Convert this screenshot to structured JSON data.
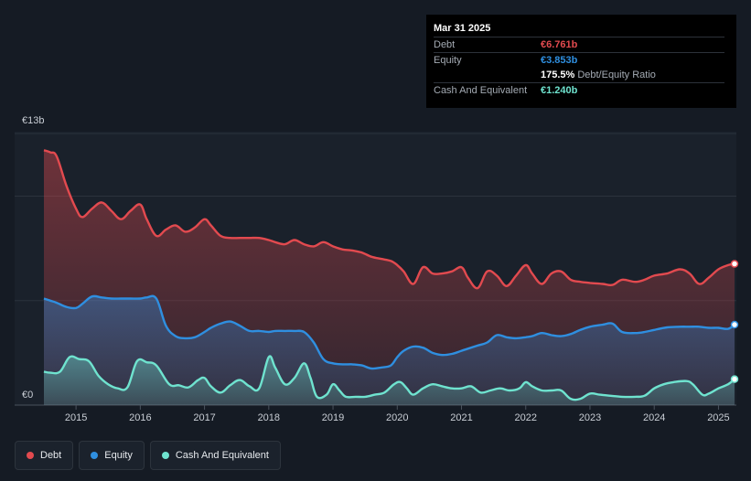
{
  "tooltip": {
    "date": "Mar 31 2025",
    "debt_label": "Debt",
    "debt_value": "€6.761b",
    "equity_label": "Equity",
    "equity_value": "€3.853b",
    "ratio_value": "175.5%",
    "ratio_label": "Debt/Equity Ratio",
    "cash_label": "Cash And Equivalent",
    "cash_value": "€1.240b"
  },
  "legend": {
    "debt": "Debt",
    "equity": "Equity",
    "cash": "Cash And Equivalent"
  },
  "colors": {
    "debt": "#e24a4f",
    "equity": "#2f8fe0",
    "cash": "#6fe3cf"
  },
  "chart_data": {
    "type": "area",
    "title": "",
    "xlabel": "",
    "ylabel": "",
    "y_axis_labels": [
      "€13b",
      "€0"
    ],
    "ylim": [
      0,
      13
    ],
    "xlim": [
      2014.5,
      2025.25
    ],
    "x_ticks": [
      2015,
      2016,
      2017,
      2018,
      2019,
      2020,
      2021,
      2022,
      2023,
      2024,
      2025
    ],
    "x_tick_labels": [
      "2015",
      "2016",
      "2017",
      "2018",
      "2019",
      "2020",
      "2021",
      "2022",
      "2023",
      "2024",
      "2025"
    ],
    "series": [
      {
        "name": "Debt",
        "key": "debt",
        "points": [
          [
            2014.5,
            12.2
          ],
          [
            2014.6,
            12.1
          ],
          [
            2014.7,
            11.9
          ],
          [
            2014.85,
            10.5
          ],
          [
            2015.0,
            9.4
          ],
          [
            2015.1,
            9.0
          ],
          [
            2015.25,
            9.4
          ],
          [
            2015.4,
            9.7
          ],
          [
            2015.55,
            9.3
          ],
          [
            2015.7,
            8.9
          ],
          [
            2015.85,
            9.3
          ],
          [
            2016.0,
            9.6
          ],
          [
            2016.1,
            8.9
          ],
          [
            2016.25,
            8.1
          ],
          [
            2016.4,
            8.4
          ],
          [
            2016.55,
            8.6
          ],
          [
            2016.7,
            8.3
          ],
          [
            2016.85,
            8.5
          ],
          [
            2017.0,
            8.9
          ],
          [
            2017.1,
            8.6
          ],
          [
            2017.25,
            8.1
          ],
          [
            2017.4,
            8.0
          ],
          [
            2017.55,
            8.0
          ],
          [
            2017.7,
            8.0
          ],
          [
            2017.85,
            8.0
          ],
          [
            2018.0,
            7.9
          ],
          [
            2018.1,
            7.8
          ],
          [
            2018.25,
            7.7
          ],
          [
            2018.4,
            7.9
          ],
          [
            2018.55,
            7.7
          ],
          [
            2018.7,
            7.6
          ],
          [
            2018.85,
            7.8
          ],
          [
            2019.0,
            7.6
          ],
          [
            2019.15,
            7.45
          ],
          [
            2019.3,
            7.4
          ],
          [
            2019.45,
            7.3
          ],
          [
            2019.6,
            7.1
          ],
          [
            2019.75,
            7.0
          ],
          [
            2019.9,
            6.9
          ],
          [
            2020.0,
            6.7
          ],
          [
            2020.1,
            6.4
          ],
          [
            2020.25,
            5.8
          ],
          [
            2020.4,
            6.6
          ],
          [
            2020.55,
            6.3
          ],
          [
            2020.7,
            6.3
          ],
          [
            2020.85,
            6.4
          ],
          [
            2021.0,
            6.6
          ],
          [
            2021.1,
            6.1
          ],
          [
            2021.25,
            5.6
          ],
          [
            2021.4,
            6.4
          ],
          [
            2021.55,
            6.2
          ],
          [
            2021.7,
            5.7
          ],
          [
            2021.85,
            6.2
          ],
          [
            2022.0,
            6.7
          ],
          [
            2022.1,
            6.3
          ],
          [
            2022.25,
            5.8
          ],
          [
            2022.4,
            6.3
          ],
          [
            2022.55,
            6.4
          ],
          [
            2022.7,
            6.0
          ],
          [
            2022.85,
            5.9
          ],
          [
            2023.0,
            5.85
          ],
          [
            2023.2,
            5.8
          ],
          [
            2023.35,
            5.75
          ],
          [
            2023.5,
            6.0
          ],
          [
            2023.7,
            5.9
          ],
          [
            2023.85,
            6.0
          ],
          [
            2024.0,
            6.2
          ],
          [
            2024.2,
            6.3
          ],
          [
            2024.4,
            6.5
          ],
          [
            2024.55,
            6.3
          ],
          [
            2024.7,
            5.8
          ],
          [
            2024.85,
            6.1
          ],
          [
            2025.0,
            6.5
          ],
          [
            2025.15,
            6.7
          ],
          [
            2025.25,
            6.76
          ]
        ]
      },
      {
        "name": "Equity",
        "key": "equity",
        "points": [
          [
            2014.5,
            5.1
          ],
          [
            2014.6,
            5.0
          ],
          [
            2014.7,
            4.9
          ],
          [
            2014.85,
            4.7
          ],
          [
            2015.0,
            4.65
          ],
          [
            2015.1,
            4.85
          ],
          [
            2015.25,
            5.2
          ],
          [
            2015.4,
            5.15
          ],
          [
            2015.55,
            5.1
          ],
          [
            2015.7,
            5.1
          ],
          [
            2015.85,
            5.1
          ],
          [
            2016.0,
            5.1
          ],
          [
            2016.1,
            5.15
          ],
          [
            2016.25,
            5.1
          ],
          [
            2016.4,
            3.8
          ],
          [
            2016.55,
            3.3
          ],
          [
            2016.7,
            3.2
          ],
          [
            2016.85,
            3.25
          ],
          [
            2017.0,
            3.5
          ],
          [
            2017.1,
            3.7
          ],
          [
            2017.25,
            3.9
          ],
          [
            2017.4,
            4.0
          ],
          [
            2017.55,
            3.8
          ],
          [
            2017.7,
            3.55
          ],
          [
            2017.85,
            3.55
          ],
          [
            2018.0,
            3.5
          ],
          [
            2018.1,
            3.55
          ],
          [
            2018.25,
            3.55
          ],
          [
            2018.4,
            3.55
          ],
          [
            2018.55,
            3.5
          ],
          [
            2018.7,
            3.0
          ],
          [
            2018.85,
            2.2
          ],
          [
            2019.0,
            2.0
          ],
          [
            2019.15,
            1.95
          ],
          [
            2019.3,
            1.95
          ],
          [
            2019.45,
            1.9
          ],
          [
            2019.6,
            1.75
          ],
          [
            2019.75,
            1.8
          ],
          [
            2019.9,
            1.9
          ],
          [
            2020.0,
            2.3
          ],
          [
            2020.1,
            2.6
          ],
          [
            2020.25,
            2.8
          ],
          [
            2020.4,
            2.75
          ],
          [
            2020.55,
            2.5
          ],
          [
            2020.7,
            2.4
          ],
          [
            2020.85,
            2.45
          ],
          [
            2021.0,
            2.6
          ],
          [
            2021.1,
            2.7
          ],
          [
            2021.25,
            2.85
          ],
          [
            2021.4,
            3.0
          ],
          [
            2021.55,
            3.35
          ],
          [
            2021.7,
            3.25
          ],
          [
            2021.85,
            3.2
          ],
          [
            2022.0,
            3.25
          ],
          [
            2022.1,
            3.3
          ],
          [
            2022.25,
            3.45
          ],
          [
            2022.4,
            3.35
          ],
          [
            2022.55,
            3.3
          ],
          [
            2022.7,
            3.4
          ],
          [
            2022.85,
            3.6
          ],
          [
            2023.0,
            3.75
          ],
          [
            2023.2,
            3.85
          ],
          [
            2023.35,
            3.9
          ],
          [
            2023.5,
            3.5
          ],
          [
            2023.7,
            3.45
          ],
          [
            2023.85,
            3.5
          ],
          [
            2024.0,
            3.6
          ],
          [
            2024.2,
            3.72
          ],
          [
            2024.4,
            3.75
          ],
          [
            2024.55,
            3.75
          ],
          [
            2024.7,
            3.75
          ],
          [
            2024.85,
            3.7
          ],
          [
            2025.0,
            3.7
          ],
          [
            2025.15,
            3.65
          ],
          [
            2025.25,
            3.85
          ]
        ]
      },
      {
        "name": "Cash And Equivalent",
        "key": "cash",
        "points": [
          [
            2014.5,
            1.6
          ],
          [
            2014.6,
            1.55
          ],
          [
            2014.75,
            1.6
          ],
          [
            2014.9,
            2.3
          ],
          [
            2015.05,
            2.2
          ],
          [
            2015.2,
            2.1
          ],
          [
            2015.35,
            1.4
          ],
          [
            2015.5,
            1.0
          ],
          [
            2015.65,
            0.8
          ],
          [
            2015.8,
            0.85
          ],
          [
            2015.95,
            2.1
          ],
          [
            2016.1,
            2.05
          ],
          [
            2016.25,
            1.9
          ],
          [
            2016.45,
            1.0
          ],
          [
            2016.6,
            0.95
          ],
          [
            2016.75,
            0.85
          ],
          [
            2016.9,
            1.2
          ],
          [
            2017.0,
            1.3
          ],
          [
            2017.1,
            0.9
          ],
          [
            2017.25,
            0.6
          ],
          [
            2017.4,
            0.95
          ],
          [
            2017.55,
            1.2
          ],
          [
            2017.7,
            0.9
          ],
          [
            2017.85,
            0.8
          ],
          [
            2018.0,
            2.3
          ],
          [
            2018.1,
            1.8
          ],
          [
            2018.25,
            1.0
          ],
          [
            2018.4,
            1.3
          ],
          [
            2018.55,
            2.0
          ],
          [
            2018.65,
            1.3
          ],
          [
            2018.75,
            0.4
          ],
          [
            2018.9,
            0.5
          ],
          [
            2019.0,
            1.0
          ],
          [
            2019.1,
            0.7
          ],
          [
            2019.2,
            0.4
          ],
          [
            2019.35,
            0.4
          ],
          [
            2019.5,
            0.4
          ],
          [
            2019.65,
            0.5
          ],
          [
            2019.8,
            0.6
          ],
          [
            2019.95,
            1.0
          ],
          [
            2020.05,
            1.1
          ],
          [
            2020.15,
            0.8
          ],
          [
            2020.25,
            0.5
          ],
          [
            2020.4,
            0.8
          ],
          [
            2020.55,
            1.0
          ],
          [
            2020.7,
            0.9
          ],
          [
            2020.85,
            0.8
          ],
          [
            2021.0,
            0.8
          ],
          [
            2021.15,
            0.9
          ],
          [
            2021.3,
            0.6
          ],
          [
            2021.45,
            0.7
          ],
          [
            2021.6,
            0.8
          ],
          [
            2021.75,
            0.7
          ],
          [
            2021.9,
            0.8
          ],
          [
            2022.0,
            1.1
          ],
          [
            2022.1,
            0.9
          ],
          [
            2022.25,
            0.7
          ],
          [
            2022.4,
            0.7
          ],
          [
            2022.55,
            0.7
          ],
          [
            2022.7,
            0.3
          ],
          [
            2022.85,
            0.3
          ],
          [
            2023.0,
            0.55
          ],
          [
            2023.15,
            0.5
          ],
          [
            2023.3,
            0.45
          ],
          [
            2023.5,
            0.4
          ],
          [
            2023.7,
            0.4
          ],
          [
            2023.85,
            0.45
          ],
          [
            2024.0,
            0.8
          ],
          [
            2024.15,
            1.0
          ],
          [
            2024.3,
            1.1
          ],
          [
            2024.5,
            1.15
          ],
          [
            2024.6,
            1.0
          ],
          [
            2024.75,
            0.5
          ],
          [
            2024.85,
            0.55
          ],
          [
            2025.0,
            0.8
          ],
          [
            2025.15,
            1.0
          ],
          [
            2025.25,
            1.24
          ]
        ]
      }
    ],
    "latest": {
      "date": "Mar 31 2025",
      "debt": 6.761,
      "equity": 3.853,
      "cash": 1.24,
      "debt_equity_ratio": 175.5
    },
    "grid": true,
    "legend_position": "bottom-left"
  }
}
